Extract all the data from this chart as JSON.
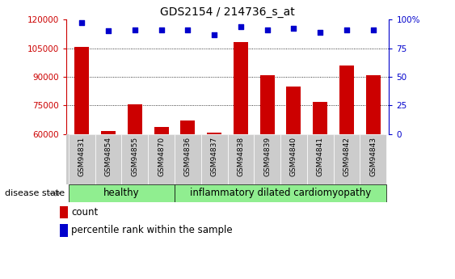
{
  "title": "GDS2154 / 214736_s_at",
  "samples": [
    "GSM94831",
    "GSM94854",
    "GSM94855",
    "GSM94870",
    "GSM94836",
    "GSM94837",
    "GSM94838",
    "GSM94839",
    "GSM94840",
    "GSM94841",
    "GSM94842",
    "GSM94843"
  ],
  "counts": [
    105500,
    61500,
    75500,
    63500,
    67000,
    60500,
    108000,
    91000,
    85000,
    77000,
    96000,
    91000
  ],
  "percentiles": [
    97,
    90,
    91,
    91,
    91,
    87,
    94,
    91,
    92,
    89,
    91,
    91
  ],
  "ylim_left": [
    60000,
    120000
  ],
  "yticks_left": [
    60000,
    75000,
    90000,
    105000,
    120000
  ],
  "ylim_right": [
    0,
    100
  ],
  "yticks_right": [
    0,
    25,
    50,
    75,
    100
  ],
  "bar_color": "#cc0000",
  "dot_color": "#0000cc",
  "healthy_count": 4,
  "healthy_label": "healthy",
  "idc_label": "inflammatory dilated cardiomyopathy",
  "disease_state_label": "disease state",
  "legend_count": "count",
  "legend_pct": "percentile rank within the sample",
  "healthy_color": "#90ee90",
  "tick_bg_color": "#cccccc",
  "left_axis_color": "#cc0000",
  "right_axis_color": "#0000cc"
}
